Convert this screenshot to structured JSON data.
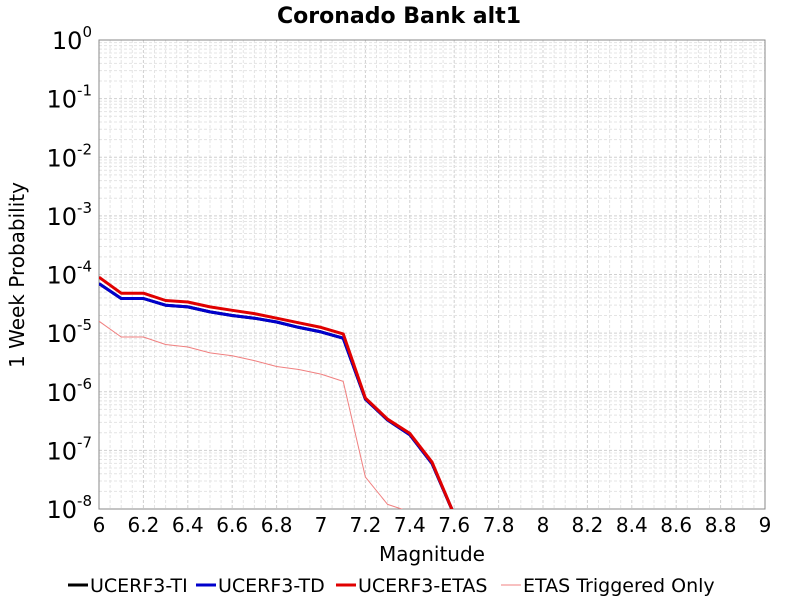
{
  "chart_data": {
    "type": "line",
    "title": "Coronado Bank alt1",
    "xlabel": "Magnitude",
    "ylabel": "1 Week Probability",
    "xlim": [
      6,
      9
    ],
    "ylim": [
      1e-08,
      1
    ],
    "yscale": "log",
    "grid": true,
    "legend_position": "bottom",
    "x_ticks": [
      "6",
      "6.2",
      "6.4",
      "6.6",
      "6.8",
      "7",
      "7.2",
      "7.4",
      "7.6",
      "7.8",
      "8",
      "8.2",
      "8.4",
      "8.6",
      "8.8",
      "9"
    ],
    "y_ticks": [
      {
        "base": "10",
        "exp": "0"
      },
      {
        "base": "10",
        "exp": "-1"
      },
      {
        "base": "10",
        "exp": "-2"
      },
      {
        "base": "10",
        "exp": "-3"
      },
      {
        "base": "10",
        "exp": "-4"
      },
      {
        "base": "10",
        "exp": "-5"
      },
      {
        "base": "10",
        "exp": "-6"
      },
      {
        "base": "10",
        "exp": "-7"
      },
      {
        "base": "10",
        "exp": "-8"
      }
    ],
    "series": [
      {
        "name": "UCERF3-TI",
        "color": "#000000",
        "width": 3,
        "x": [
          6.0,
          6.1,
          6.2,
          6.3,
          6.4,
          6.5,
          6.6,
          6.7,
          6.8,
          6.9,
          7.0,
          7.1,
          7.2,
          7.3,
          7.4,
          7.5,
          7.6
        ],
        "y": [
          7e-05,
          3.9e-05,
          3.9e-05,
          3e-05,
          2.8e-05,
          2.3e-05,
          2e-05,
          1.8e-05,
          1.55e-05,
          1.25e-05,
          1.05e-05,
          8.2e-06,
          7.5e-07,
          3.3e-07,
          1.85e-07,
          6e-08,
          8e-09
        ]
      },
      {
        "name": "UCERF3-TD",
        "color": "#0000cc",
        "width": 3,
        "x": [
          6.0,
          6.1,
          6.2,
          6.3,
          6.4,
          6.5,
          6.6,
          6.7,
          6.8,
          6.9,
          7.0,
          7.1,
          7.2,
          7.3,
          7.4,
          7.5,
          7.6
        ],
        "y": [
          7e-05,
          3.9e-05,
          3.9e-05,
          3e-05,
          2.8e-05,
          2.3e-05,
          2e-05,
          1.8e-05,
          1.55e-05,
          1.25e-05,
          1.05e-05,
          8.2e-06,
          7.5e-07,
          3.3e-07,
          1.85e-07,
          6e-08,
          8e-09
        ]
      },
      {
        "name": "UCERF3-ETAS",
        "color": "#e00000",
        "width": 3,
        "x": [
          6.0,
          6.1,
          6.2,
          6.3,
          6.4,
          6.5,
          6.6,
          6.7,
          6.8,
          6.9,
          7.0,
          7.1,
          7.2,
          7.3,
          7.4,
          7.5,
          7.6
        ],
        "y": [
          9e-05,
          4.8e-05,
          4.8e-05,
          3.6e-05,
          3.4e-05,
          2.8e-05,
          2.45e-05,
          2.15e-05,
          1.8e-05,
          1.5e-05,
          1.25e-05,
          9.7e-06,
          7.8e-07,
          3.4e-07,
          1.95e-07,
          6.3e-08,
          8e-09
        ]
      },
      {
        "name": "ETAS Triggered Only",
        "color": "#f08080",
        "width": 1,
        "x": [
          6.0,
          6.1,
          6.2,
          6.3,
          6.4,
          6.5,
          6.6,
          6.7,
          6.8,
          6.9,
          7.0,
          7.1,
          7.2,
          7.3,
          7.4,
          7.5,
          7.6
        ],
        "y": [
          1.6e-05,
          8.6e-06,
          8.6e-06,
          6.4e-06,
          5.8e-06,
          4.6e-06,
          4.1e-06,
          3.4e-06,
          2.7e-06,
          2.4e-06,
          2e-06,
          1.5e-06,
          3.5e-08,
          1.2e-08,
          9e-09,
          8e-09,
          8e-09
        ]
      }
    ]
  }
}
